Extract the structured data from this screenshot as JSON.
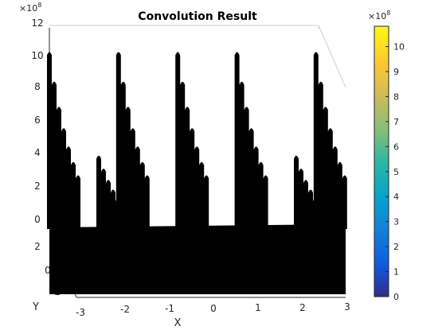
{
  "chart_data": {
    "type": "surface",
    "title": "Convolution Result",
    "xlabel": "X",
    "ylabel": "Y",
    "zlabel": "",
    "x_ticks": [
      "-3",
      "-2",
      "-1",
      "0",
      "1",
      "2",
      "3"
    ],
    "y_ticks": [
      "-2",
      "0",
      "2"
    ],
    "z_ticks": [
      "0",
      "2",
      "4",
      "6",
      "8",
      "10",
      "12"
    ],
    "z_exponent": "8",
    "xlim": [
      -3,
      3
    ],
    "ylim": [
      -3,
      3
    ],
    "zlim": [
      0,
      12
    ],
    "z_scale": "×10^8",
    "surface_color": "#000000",
    "peaks": [
      {
        "x": -3.0,
        "z": 10.5
      },
      {
        "x": -2.0,
        "z": 4.3
      },
      {
        "x": -1.6,
        "z": 10.5
      },
      {
        "x": -0.4,
        "z": 10.5
      },
      {
        "x": 0.8,
        "z": 10.5
      },
      {
        "x": 2.0,
        "z": 4.3
      },
      {
        "x": 2.4,
        "z": 10.5
      }
    ],
    "baseline_z": 0.1,
    "colorbar": {
      "ticks": [
        "0",
        "1",
        "2",
        "3",
        "4",
        "5",
        "6",
        "7",
        "8",
        "9",
        "10"
      ],
      "exponent": "8",
      "range": [
        0,
        10.4
      ],
      "colormap": "parula"
    }
  }
}
